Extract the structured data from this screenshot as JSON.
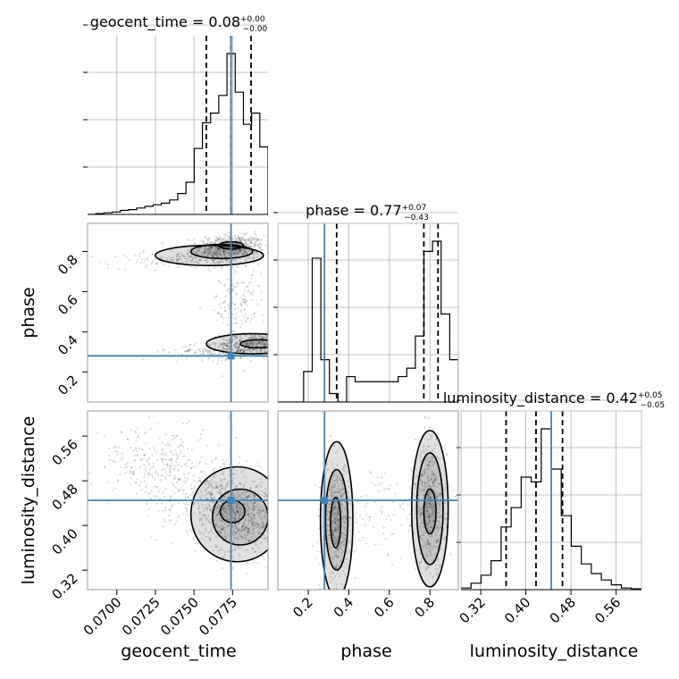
{
  "chart_data": {
    "type": "corner",
    "parameters": [
      "geocent_time",
      "phase",
      "luminosity_distance"
    ],
    "truths": {
      "geocent_time": 0.0774,
      "phase": 0.28,
      "luminosity_distance": 0.445
    },
    "ranges": {
      "geocent_time": [
        0.0681,
        0.0798
      ],
      "phase": [
        0.05,
        0.94
      ],
      "luminosity_distance": [
        0.285,
        0.605
      ]
    },
    "titles": [
      {
        "name": "geocent_time",
        "value": "0.08",
        "plus": "+0.00",
        "minus": "−0.00"
      },
      {
        "name": "phase",
        "value": "0.77",
        "plus": "+0.07",
        "minus": "−0.43"
      },
      {
        "name": "luminosity_distance",
        "value": "0.42",
        "plus": "+0.05",
        "minus": "−0.05"
      }
    ],
    "quantile_lines": {
      "geocent_time": [
        0.0758,
        0.0774,
        0.0787
      ],
      "phase": [
        0.34,
        0.77,
        0.84
      ],
      "luminosity_distance": [
        0.365,
        0.418,
        0.465
      ]
    },
    "axis_labels": {
      "x": [
        "geocent_time",
        "phase",
        "luminosity_distance"
      ],
      "y": [
        "phase",
        "luminosity_distance"
      ]
    },
    "ticks": {
      "geocent_time": [
        {
          "v": 0.07,
          "label": "0.0700"
        },
        {
          "v": 0.0725,
          "label": "0.0725"
        },
        {
          "v": 0.075,
          "label": "0.0750"
        },
        {
          "v": 0.0775,
          "label": "0.0775"
        }
      ],
      "phase": [
        {
          "v": 0.2,
          "label": "0.2"
        },
        {
          "v": 0.4,
          "label": "0.4"
        },
        {
          "v": 0.6,
          "label": "0.6"
        },
        {
          "v": 0.8,
          "label": "0.8"
        }
      ],
      "luminosity_distance": [
        {
          "v": 0.32,
          "label": "0.32"
        },
        {
          "v": 0.4,
          "label": "0.40"
        },
        {
          "v": 0.48,
          "label": "0.48"
        },
        {
          "v": 0.56,
          "label": "0.56"
        }
      ]
    },
    "histograms": {
      "geocent_time": {
        "bins": [
          0.0681,
          0.0798
        ],
        "counts": [
          0,
          0.5,
          1,
          1.5,
          2.5,
          3,
          4,
          5,
          6,
          7,
          9,
          13,
          20,
          41,
          57,
          63,
          74,
          100,
          76,
          56,
          63,
          42
        ]
      },
      "phase": {
        "bins": [
          0.05,
          0.94
        ],
        "counts": [
          0,
          0,
          0,
          18,
          85,
          25,
          5,
          0,
          15,
          12,
          12,
          12,
          12,
          12,
          15,
          20,
          39,
          89,
          95,
          52,
          25
        ]
      },
      "luminosity_distance": {
        "bins": [
          0.285,
          0.605
        ],
        "counts": [
          1,
          4,
          9,
          18,
          39,
          51,
          70,
          67,
          100,
          75,
          46,
          27,
          16,
          10,
          6,
          3,
          1,
          0.5
        ]
      }
    },
    "grid": true
  }
}
